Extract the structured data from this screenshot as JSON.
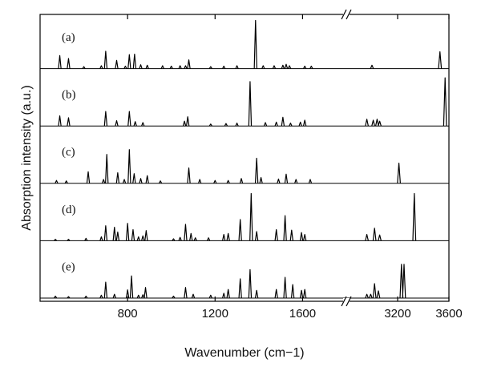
{
  "chart_data": {
    "type": "line",
    "xlabel": "Wavenumber (cm−1)",
    "ylabel": "Absorption intensity (a.u.)",
    "x_segments": [
      {
        "range": [
          400,
          1800
        ],
        "ticks": [
          800,
          1200,
          1600
        ]
      },
      {
        "range": [
          2800,
          3600
        ],
        "ticks": [
          3200,
          3600
        ]
      }
    ],
    "axis_break": true,
    "series": [
      {
        "name": "(a)",
        "peaks": [
          {
            "x": 490,
            "y": 0.27
          },
          {
            "x": 530,
            "y": 0.21
          },
          {
            "x": 600,
            "y": 0.04
          },
          {
            "x": 680,
            "y": 0.06
          },
          {
            "x": 700,
            "y": 0.36
          },
          {
            "x": 750,
            "y": 0.17
          },
          {
            "x": 790,
            "y": 0.05
          },
          {
            "x": 808,
            "y": 0.29
          },
          {
            "x": 832,
            "y": 0.3
          },
          {
            "x": 860,
            "y": 0.08
          },
          {
            "x": 890,
            "y": 0.07
          },
          {
            "x": 960,
            "y": 0.06
          },
          {
            "x": 1000,
            "y": 0.05
          },
          {
            "x": 1040,
            "y": 0.06
          },
          {
            "x": 1065,
            "y": 0.06
          },
          {
            "x": 1080,
            "y": 0.18
          },
          {
            "x": 1180,
            "y": 0.04
          },
          {
            "x": 1240,
            "y": 0.05
          },
          {
            "x": 1300,
            "y": 0.06
          },
          {
            "x": 1385,
            "y": 1.0
          },
          {
            "x": 1420,
            "y": 0.06
          },
          {
            "x": 1470,
            "y": 0.06
          },
          {
            "x": 1510,
            "y": 0.07
          },
          {
            "x": 1525,
            "y": 0.09
          },
          {
            "x": 1540,
            "y": 0.06
          },
          {
            "x": 1610,
            "y": 0.05
          },
          {
            "x": 1640,
            "y": 0.05
          },
          {
            "x": 3000,
            "y": 0.07
          },
          {
            "x": 3530,
            "y": 0.35
          }
        ]
      },
      {
        "name": "(b)",
        "peaks": [
          {
            "x": 490,
            "y": 0.21
          },
          {
            "x": 530,
            "y": 0.17
          },
          {
            "x": 700,
            "y": 0.3
          },
          {
            "x": 750,
            "y": 0.11
          },
          {
            "x": 808,
            "y": 0.3
          },
          {
            "x": 835,
            "y": 0.09
          },
          {
            "x": 870,
            "y": 0.07
          },
          {
            "x": 1060,
            "y": 0.1
          },
          {
            "x": 1075,
            "y": 0.19
          },
          {
            "x": 1180,
            "y": 0.04
          },
          {
            "x": 1250,
            "y": 0.05
          },
          {
            "x": 1300,
            "y": 0.06
          },
          {
            "x": 1360,
            "y": 0.92
          },
          {
            "x": 1430,
            "y": 0.07
          },
          {
            "x": 1480,
            "y": 0.08
          },
          {
            "x": 1510,
            "y": 0.18
          },
          {
            "x": 1545,
            "y": 0.06
          },
          {
            "x": 1590,
            "y": 0.08
          },
          {
            "x": 1610,
            "y": 0.12
          },
          {
            "x": 2960,
            "y": 0.14
          },
          {
            "x": 3010,
            "y": 0.12
          },
          {
            "x": 3040,
            "y": 0.14
          },
          {
            "x": 3060,
            "y": 0.1
          },
          {
            "x": 3570,
            "y": 1.0
          }
        ]
      },
      {
        "name": "(c)",
        "peaks": [
          {
            "x": 475,
            "y": 0.06
          },
          {
            "x": 520,
            "y": 0.05
          },
          {
            "x": 620,
            "y": 0.24
          },
          {
            "x": 690,
            "y": 0.08
          },
          {
            "x": 705,
            "y": 0.6
          },
          {
            "x": 755,
            "y": 0.22
          },
          {
            "x": 785,
            "y": 0.08
          },
          {
            "x": 808,
            "y": 0.7
          },
          {
            "x": 830,
            "y": 0.2
          },
          {
            "x": 860,
            "y": 0.1
          },
          {
            "x": 890,
            "y": 0.16
          },
          {
            "x": 950,
            "y": 0.05
          },
          {
            "x": 1080,
            "y": 0.32
          },
          {
            "x": 1130,
            "y": 0.08
          },
          {
            "x": 1200,
            "y": 0.06
          },
          {
            "x": 1260,
            "y": 0.06
          },
          {
            "x": 1320,
            "y": 0.1
          },
          {
            "x": 1390,
            "y": 0.52
          },
          {
            "x": 1410,
            "y": 0.12
          },
          {
            "x": 1490,
            "y": 0.09
          },
          {
            "x": 1525,
            "y": 0.19
          },
          {
            "x": 1570,
            "y": 0.08
          },
          {
            "x": 1635,
            "y": 0.08
          },
          {
            "x": 3210,
            "y": 0.42
          }
        ]
      },
      {
        "name": "(d)",
        "peaks": [
          {
            "x": 470,
            "y": 0.03
          },
          {
            "x": 530,
            "y": 0.03
          },
          {
            "x": 610,
            "y": 0.05
          },
          {
            "x": 680,
            "y": 0.08
          },
          {
            "x": 700,
            "y": 0.31
          },
          {
            "x": 740,
            "y": 0.28
          },
          {
            "x": 755,
            "y": 0.18
          },
          {
            "x": 800,
            "y": 0.36
          },
          {
            "x": 825,
            "y": 0.23
          },
          {
            "x": 850,
            "y": 0.08
          },
          {
            "x": 870,
            "y": 0.1
          },
          {
            "x": 885,
            "y": 0.21
          },
          {
            "x": 1010,
            "y": 0.04
          },
          {
            "x": 1040,
            "y": 0.07
          },
          {
            "x": 1065,
            "y": 0.34
          },
          {
            "x": 1090,
            "y": 0.15
          },
          {
            "x": 1110,
            "y": 0.06
          },
          {
            "x": 1170,
            "y": 0.06
          },
          {
            "x": 1240,
            "y": 0.13
          },
          {
            "x": 1260,
            "y": 0.15
          },
          {
            "x": 1315,
            "y": 0.44
          },
          {
            "x": 1365,
            "y": 0.98
          },
          {
            "x": 1390,
            "y": 0.19
          },
          {
            "x": 1480,
            "y": 0.23
          },
          {
            "x": 1520,
            "y": 0.52
          },
          {
            "x": 1550,
            "y": 0.22
          },
          {
            "x": 1595,
            "y": 0.17
          },
          {
            "x": 1610,
            "y": 0.13
          },
          {
            "x": 2960,
            "y": 0.13
          },
          {
            "x": 3020,
            "y": 0.26
          },
          {
            "x": 3060,
            "y": 0.12
          },
          {
            "x": 3330,
            "y": 0.98
          }
        ]
      },
      {
        "name": "(e)",
        "peaks": [
          {
            "x": 470,
            "y": 0.04
          },
          {
            "x": 530,
            "y": 0.03
          },
          {
            "x": 610,
            "y": 0.04
          },
          {
            "x": 680,
            "y": 0.06
          },
          {
            "x": 700,
            "y": 0.33
          },
          {
            "x": 740,
            "y": 0.08
          },
          {
            "x": 800,
            "y": 0.17
          },
          {
            "x": 818,
            "y": 0.46
          },
          {
            "x": 850,
            "y": 0.06
          },
          {
            "x": 870,
            "y": 0.07
          },
          {
            "x": 882,
            "y": 0.22
          },
          {
            "x": 1010,
            "y": 0.04
          },
          {
            "x": 1065,
            "y": 0.22
          },
          {
            "x": 1100,
            "y": 0.08
          },
          {
            "x": 1180,
            "y": 0.06
          },
          {
            "x": 1240,
            "y": 0.1
          },
          {
            "x": 1260,
            "y": 0.18
          },
          {
            "x": 1315,
            "y": 0.4
          },
          {
            "x": 1360,
            "y": 0.59
          },
          {
            "x": 1390,
            "y": 0.16
          },
          {
            "x": 1480,
            "y": 0.18
          },
          {
            "x": 1520,
            "y": 0.43
          },
          {
            "x": 1555,
            "y": 0.28
          },
          {
            "x": 1595,
            "y": 0.16
          },
          {
            "x": 1610,
            "y": 0.18
          },
          {
            "x": 2960,
            "y": 0.08
          },
          {
            "x": 2990,
            "y": 0.08
          },
          {
            "x": 3020,
            "y": 0.3
          },
          {
            "x": 3050,
            "y": 0.15
          },
          {
            "x": 3230,
            "y": 0.7
          },
          {
            "x": 3250,
            "y": 0.7
          }
        ]
      }
    ],
    "grid": false,
    "legend": "none"
  }
}
